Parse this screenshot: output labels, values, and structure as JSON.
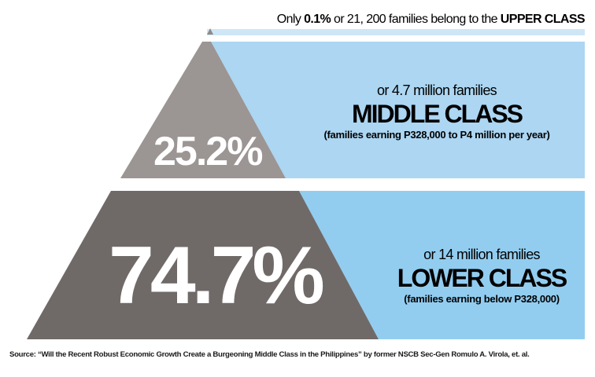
{
  "upper": {
    "prefix": "Only ",
    "percent": "0.1%",
    "middle": " or 21, 200 families belong to the ",
    "class_name": "UPPER CLASS"
  },
  "middle": {
    "percent": "25.2%",
    "families": "or 4.7 million families",
    "class_name": "MIDDLE CLASS",
    "description": "(families earning P328,000 to P4 million per year)"
  },
  "lower": {
    "percent": "74.7%",
    "families": "or 14 million families",
    "class_name": "LOWER CLASS",
    "description": "(families earning below P328,000)"
  },
  "source": "Source: “Will the Recent Robust Economic Growth Create a Burgeoning Middle Class in the Philippines” by former NSCB Sec-Gen Romulo A. Virola, et. al.",
  "colors": {
    "middle_triangle": "#9b9593",
    "lower_triangle": "#6f6a68",
    "tip": "#8f8a88",
    "upper_band": "#cfe6f6",
    "middle_band": "#acd6f2",
    "lower_band": "#92cdf0"
  }
}
